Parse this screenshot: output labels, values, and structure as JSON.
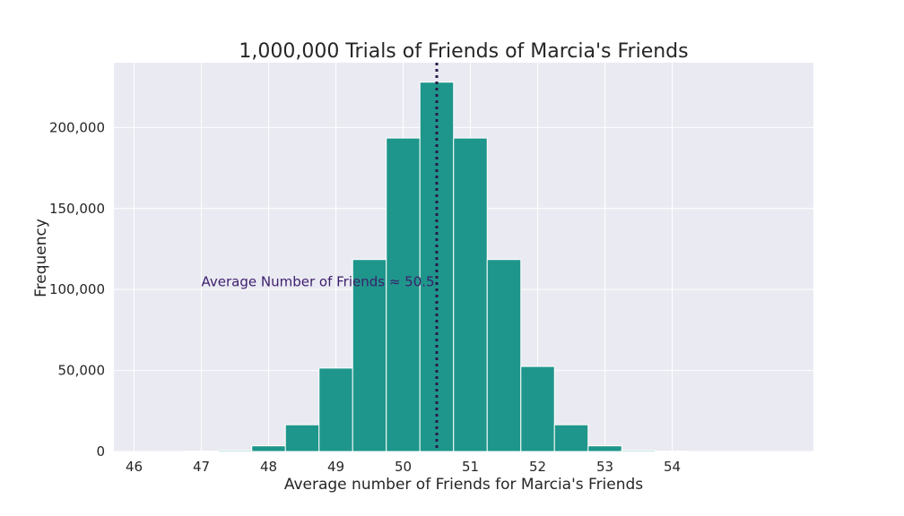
{
  "chart_data": {
    "type": "bar",
    "title": "1,000,000 Trials of Friends of Marcia's Friends",
    "xlabel": "Average number of Friends for Marcia's Friends",
    "ylabel": "Frequency",
    "xlim": [
      45.7,
      56.1
    ],
    "ylim": [
      0,
      240000
    ],
    "x_ticks": [
      46,
      47,
      48,
      49,
      50,
      51,
      52,
      53,
      54
    ],
    "x_tick_labels": [
      "46",
      "47",
      "48",
      "49",
      "50",
      "51",
      "52",
      "53",
      "54"
    ],
    "y_ticks": [
      0,
      50000,
      100000,
      150000,
      200000
    ],
    "y_tick_labels": [
      "0",
      "50,000",
      "100,000",
      "150,000",
      "200,000"
    ],
    "grid": true,
    "bin_edges": [
      46.25,
      46.75,
      47.25,
      47.75,
      48.25,
      48.75,
      49.25,
      49.75,
      50.25,
      50.75,
      51.25,
      51.75,
      52.25,
      52.75,
      53.25,
      53.75,
      54.25
    ],
    "values": [
      50,
      150,
      700,
      3500,
      16500,
      51500,
      118500,
      193500,
      228000,
      193500,
      118500,
      52500,
      16500,
      3500,
      700,
      150
    ],
    "bar_color": "#1f968b",
    "mean_line": {
      "x": 50.5,
      "color": "#2a1a4a",
      "style": "dotted"
    },
    "annotation": {
      "text": "Average Number of Friends ≈ 50.5",
      "x": 47.0,
      "y": 102000,
      "color": "#3b1e6b"
    },
    "background_color": "#eaeaf2",
    "grid_color": "#ffffff"
  }
}
